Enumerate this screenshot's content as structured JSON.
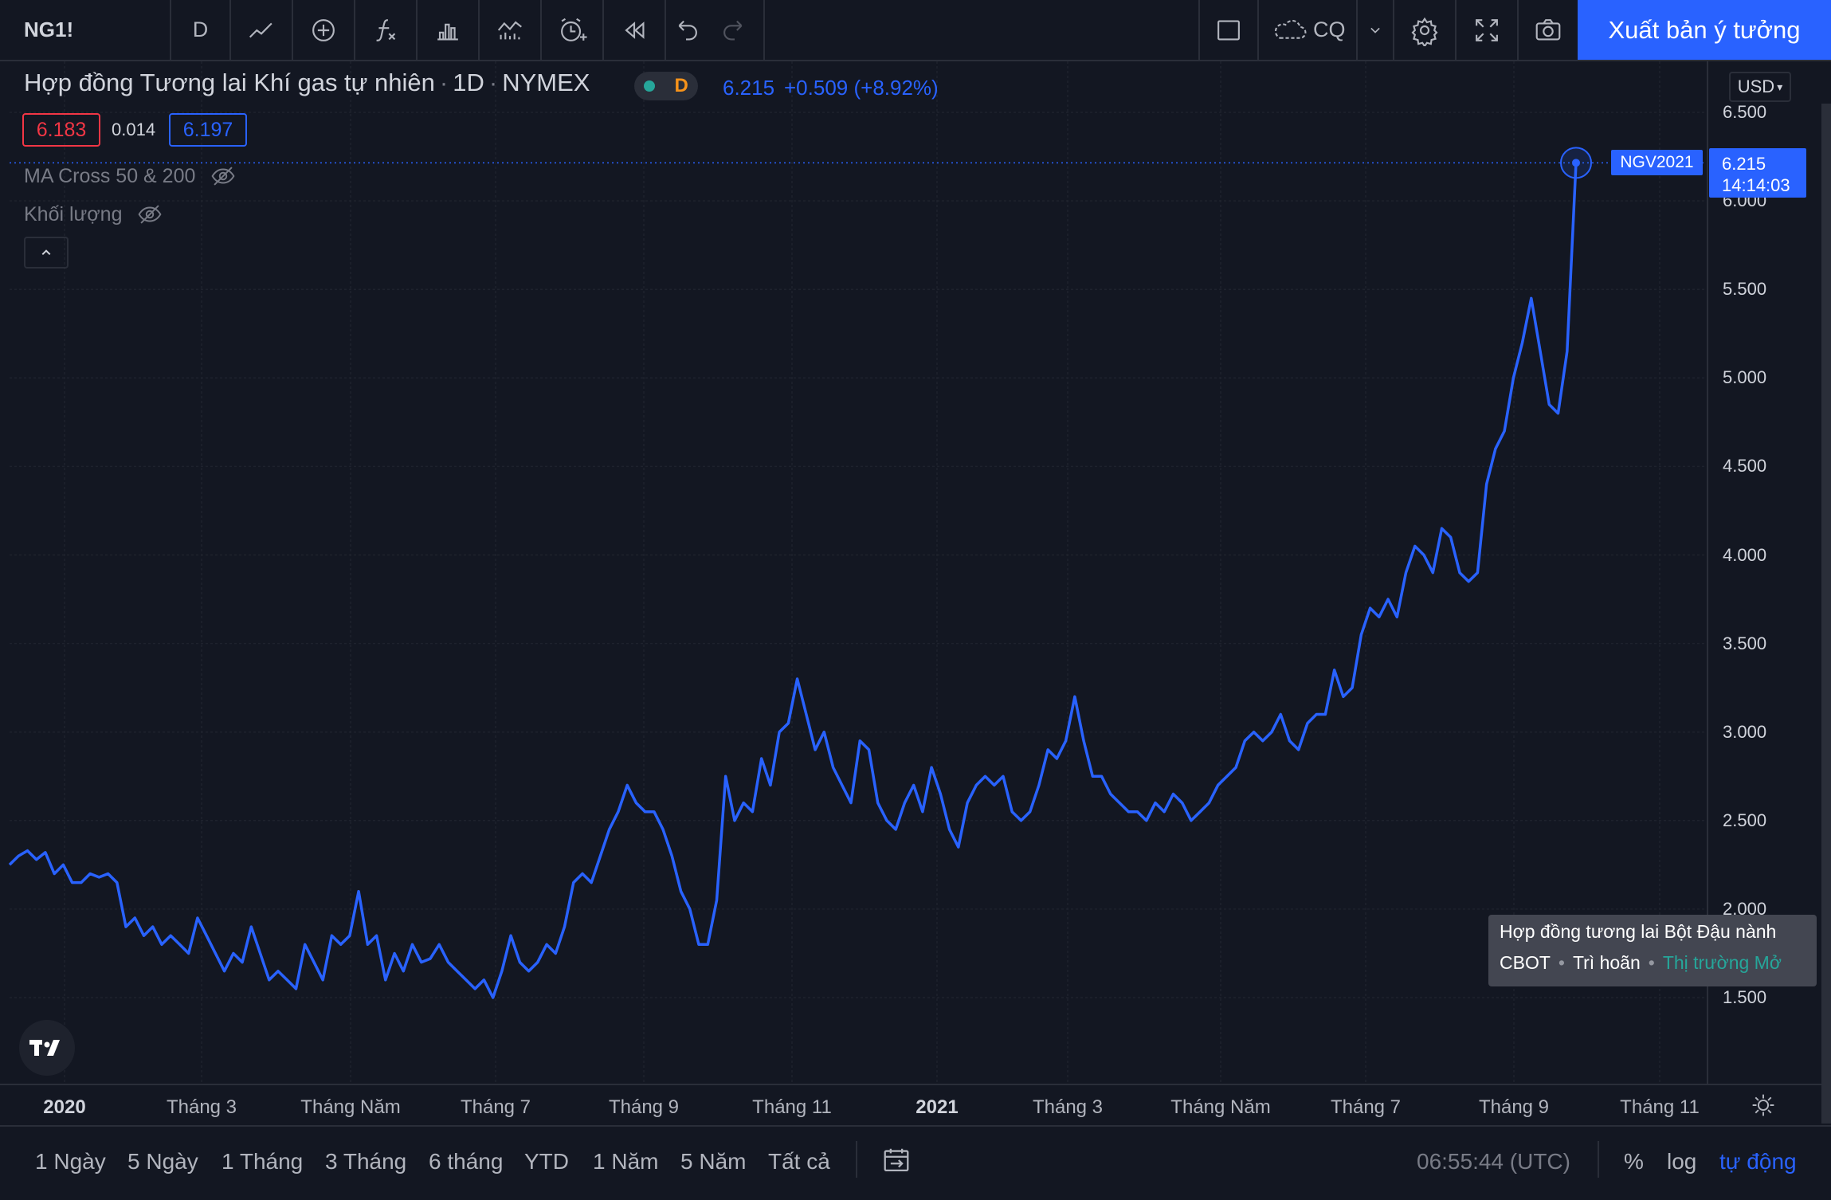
{
  "toolbar": {
    "symbol": "NG1!",
    "interval": "D",
    "cloud_label": "CQ",
    "publish_label": "Xuất bản ý tưởng"
  },
  "legend": {
    "title": "Hợp đồng Tương lai Khí gas tự nhiên",
    "timeframe": "1D",
    "exchange": "NYMEX",
    "status_letter": "D",
    "last_price": "6.215",
    "change": "+0.509 (+8.92%)",
    "bid": "6.183",
    "spread": "0.014",
    "ask": "6.197",
    "indicator_ma": "MA Cross 50 & 200",
    "indicator_volume": "Khối lượng"
  },
  "price_scale": {
    "currency": "USD",
    "labels": [
      "6.500",
      "6.000",
      "5.500",
      "5.000",
      "4.500",
      "4.000",
      "3.500",
      "3.000",
      "2.500",
      "2.000",
      "1.500"
    ],
    "tag_symbol": "NGV2021",
    "tag_price": "6.215",
    "tag_countdown": "14:14:03"
  },
  "time_axis": {
    "labels": [
      {
        "text": "2020",
        "year": true
      },
      {
        "text": "Tháng 3",
        "year": false
      },
      {
        "text": "Tháng Năm",
        "year": false
      },
      {
        "text": "Tháng 7",
        "year": false
      },
      {
        "text": "Tháng 9",
        "year": false
      },
      {
        "text": "Tháng 11",
        "year": false
      },
      {
        "text": "2021",
        "year": true
      },
      {
        "text": "Tháng 3",
        "year": false
      },
      {
        "text": "Tháng Năm",
        "year": false
      },
      {
        "text": "Tháng 7",
        "year": false
      },
      {
        "text": "Tháng 9",
        "year": false
      },
      {
        "text": "Tháng 11",
        "year": false
      }
    ]
  },
  "tooltip": {
    "title": "Hợp đồng tương lai Bột Đậu nành",
    "exchange": "CBOT",
    "delay": "Trì hoãn",
    "market_status": "Thị trường Mở"
  },
  "bottom_bar": {
    "ranges": [
      "1 Ngày",
      "5 Ngày",
      "1 Tháng",
      "3 Tháng",
      "6 tháng",
      "YTD",
      "1 Năm",
      "5 Năm",
      "Tất cả"
    ],
    "clock": "06:55:44 (UTC)",
    "percent": "%",
    "log": "log",
    "auto": "tự động"
  },
  "colors": {
    "background": "#131722",
    "line": "#2962ff",
    "accent": "#2962ff",
    "bid": "#f23645",
    "market_open": "#26a69a"
  },
  "chart_data": {
    "type": "line",
    "title": "Hợp đồng Tương lai Khí gas tự nhiên",
    "xlabel": "",
    "ylabel": "",
    "ylim": [
      1.2,
      6.75
    ],
    "grid": true,
    "series": [
      {
        "values": [
          2.25,
          2.3,
          2.33,
          2.28,
          2.32,
          2.2,
          2.25,
          2.15,
          2.15,
          2.2,
          2.18,
          2.2,
          2.15,
          1.9,
          1.95,
          1.85,
          1.9,
          1.8,
          1.85,
          1.8,
          1.75,
          1.95,
          1.85,
          1.75,
          1.65,
          1.75,
          1.7,
          1.9,
          1.75,
          1.6,
          1.65,
          1.6,
          1.55,
          1.8,
          1.7,
          1.6,
          1.85,
          1.8,
          1.85,
          2.1,
          1.8,
          1.85,
          1.6,
          1.75,
          1.65,
          1.8,
          1.7,
          1.72,
          1.8,
          1.7,
          1.65,
          1.6,
          1.55,
          1.6,
          1.5,
          1.65,
          1.85,
          1.7,
          1.65,
          1.7,
          1.8,
          1.75,
          1.9,
          2.15,
          2.2,
          2.15,
          2.3,
          2.45,
          2.55,
          2.7,
          2.6,
          2.55,
          2.55,
          2.45,
          2.3,
          2.1,
          2.0,
          1.8,
          1.8,
          2.05,
          2.75,
          2.5,
          2.6,
          2.55,
          2.85,
          2.7,
          3.0,
          3.05,
          3.3,
          3.1,
          2.9,
          3.0,
          2.8,
          2.7,
          2.6,
          2.95,
          2.9,
          2.6,
          2.5,
          2.45,
          2.6,
          2.7,
          2.55,
          2.8,
          2.65,
          2.45,
          2.35,
          2.6,
          2.7,
          2.75,
          2.7,
          2.75,
          2.55,
          2.5,
          2.55,
          2.7,
          2.9,
          2.85,
          2.95,
          3.2,
          2.95,
          2.75,
          2.75,
          2.65,
          2.6,
          2.55,
          2.55,
          2.5,
          2.6,
          2.55,
          2.65,
          2.6,
          2.5,
          2.55,
          2.6,
          2.7,
          2.75,
          2.8,
          2.95,
          3.0,
          2.95,
          3.0,
          3.1,
          2.95,
          2.9,
          3.05,
          3.1,
          3.1,
          3.35,
          3.2,
          3.25,
          3.55,
          3.7,
          3.65,
          3.75,
          3.65,
          3.9,
          4.05,
          4.0,
          3.9,
          4.15,
          4.1,
          3.9,
          3.85,
          3.9,
          4.4,
          4.6,
          4.7,
          5.0,
          5.2,
          5.45,
          5.15,
          4.85,
          4.8,
          5.15,
          6.215
        ]
      }
    ]
  }
}
